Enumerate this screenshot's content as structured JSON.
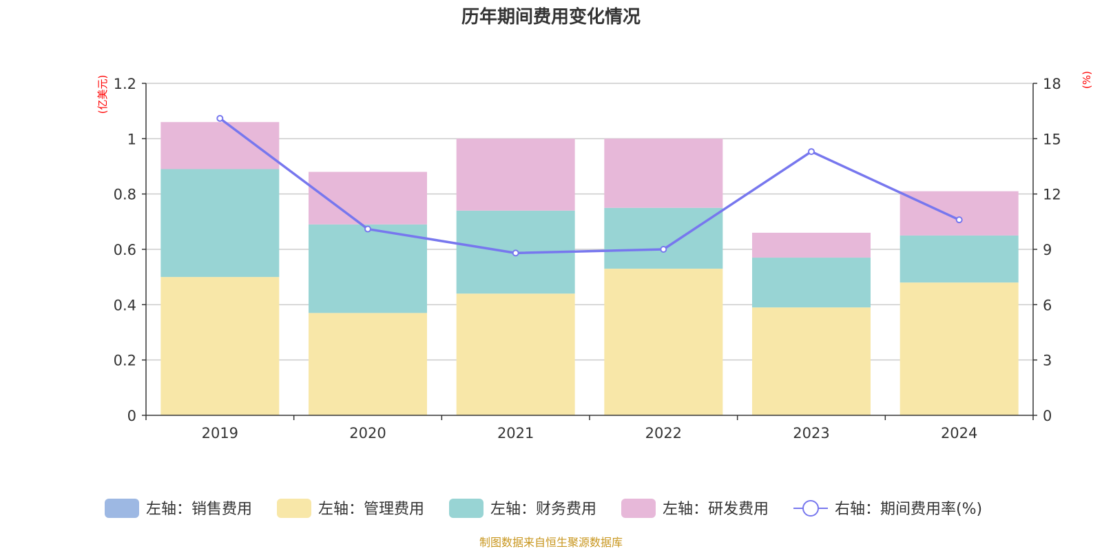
{
  "chart_data": {
    "type": "bar",
    "title": "历年期间费用变化情况",
    "categories": [
      "2019",
      "2020",
      "2021",
      "2022",
      "2023",
      "2024"
    ],
    "left_axis": {
      "unit": "(亿美元)",
      "ylim": [
        0,
        1.2
      ],
      "ticks": [
        "0",
        "0.2",
        "0.4",
        "0.6",
        "0.8",
        "1",
        "1.2"
      ]
    },
    "right_axis": {
      "unit": "(%)",
      "ylim": [
        0,
        18
      ],
      "ticks": [
        "0",
        "3",
        "6",
        "9",
        "12",
        "15",
        "18"
      ]
    },
    "series": [
      {
        "name": "左轴：销售费用",
        "axis": "left",
        "kind": "bar",
        "color": "#9db8e3",
        "values": [
          0,
          0,
          0,
          0,
          0,
          0
        ]
      },
      {
        "name": "左轴：管理费用",
        "axis": "left",
        "kind": "bar",
        "color": "#f8e7a8",
        "values": [
          0.5,
          0.37,
          0.44,
          0.53,
          0.39,
          0.48
        ]
      },
      {
        "name": "左轴：财务费用",
        "axis": "left",
        "kind": "bar",
        "color": "#98d4d4",
        "values": [
          0.39,
          0.32,
          0.3,
          0.22,
          0.18,
          0.17
        ]
      },
      {
        "name": "左轴：研发费用",
        "axis": "left",
        "kind": "bar",
        "color": "#e7b8d9",
        "values": [
          0.17,
          0.19,
          0.26,
          0.25,
          0.09,
          0.16
        ]
      },
      {
        "name": "右轴：期间费用率(%)",
        "axis": "right",
        "kind": "line",
        "color": "#7777ee",
        "values": [
          16.1,
          10.1,
          8.8,
          9.0,
          14.3,
          10.6
        ]
      }
    ],
    "grid": true,
    "legend_position": "bottom"
  },
  "source_text": "制图数据来自恒生聚源数据库",
  "colors": {
    "axis": "#333333",
    "grid": "#cccccc",
    "unit_label": "#ff0000",
    "source": "#c8961e"
  }
}
